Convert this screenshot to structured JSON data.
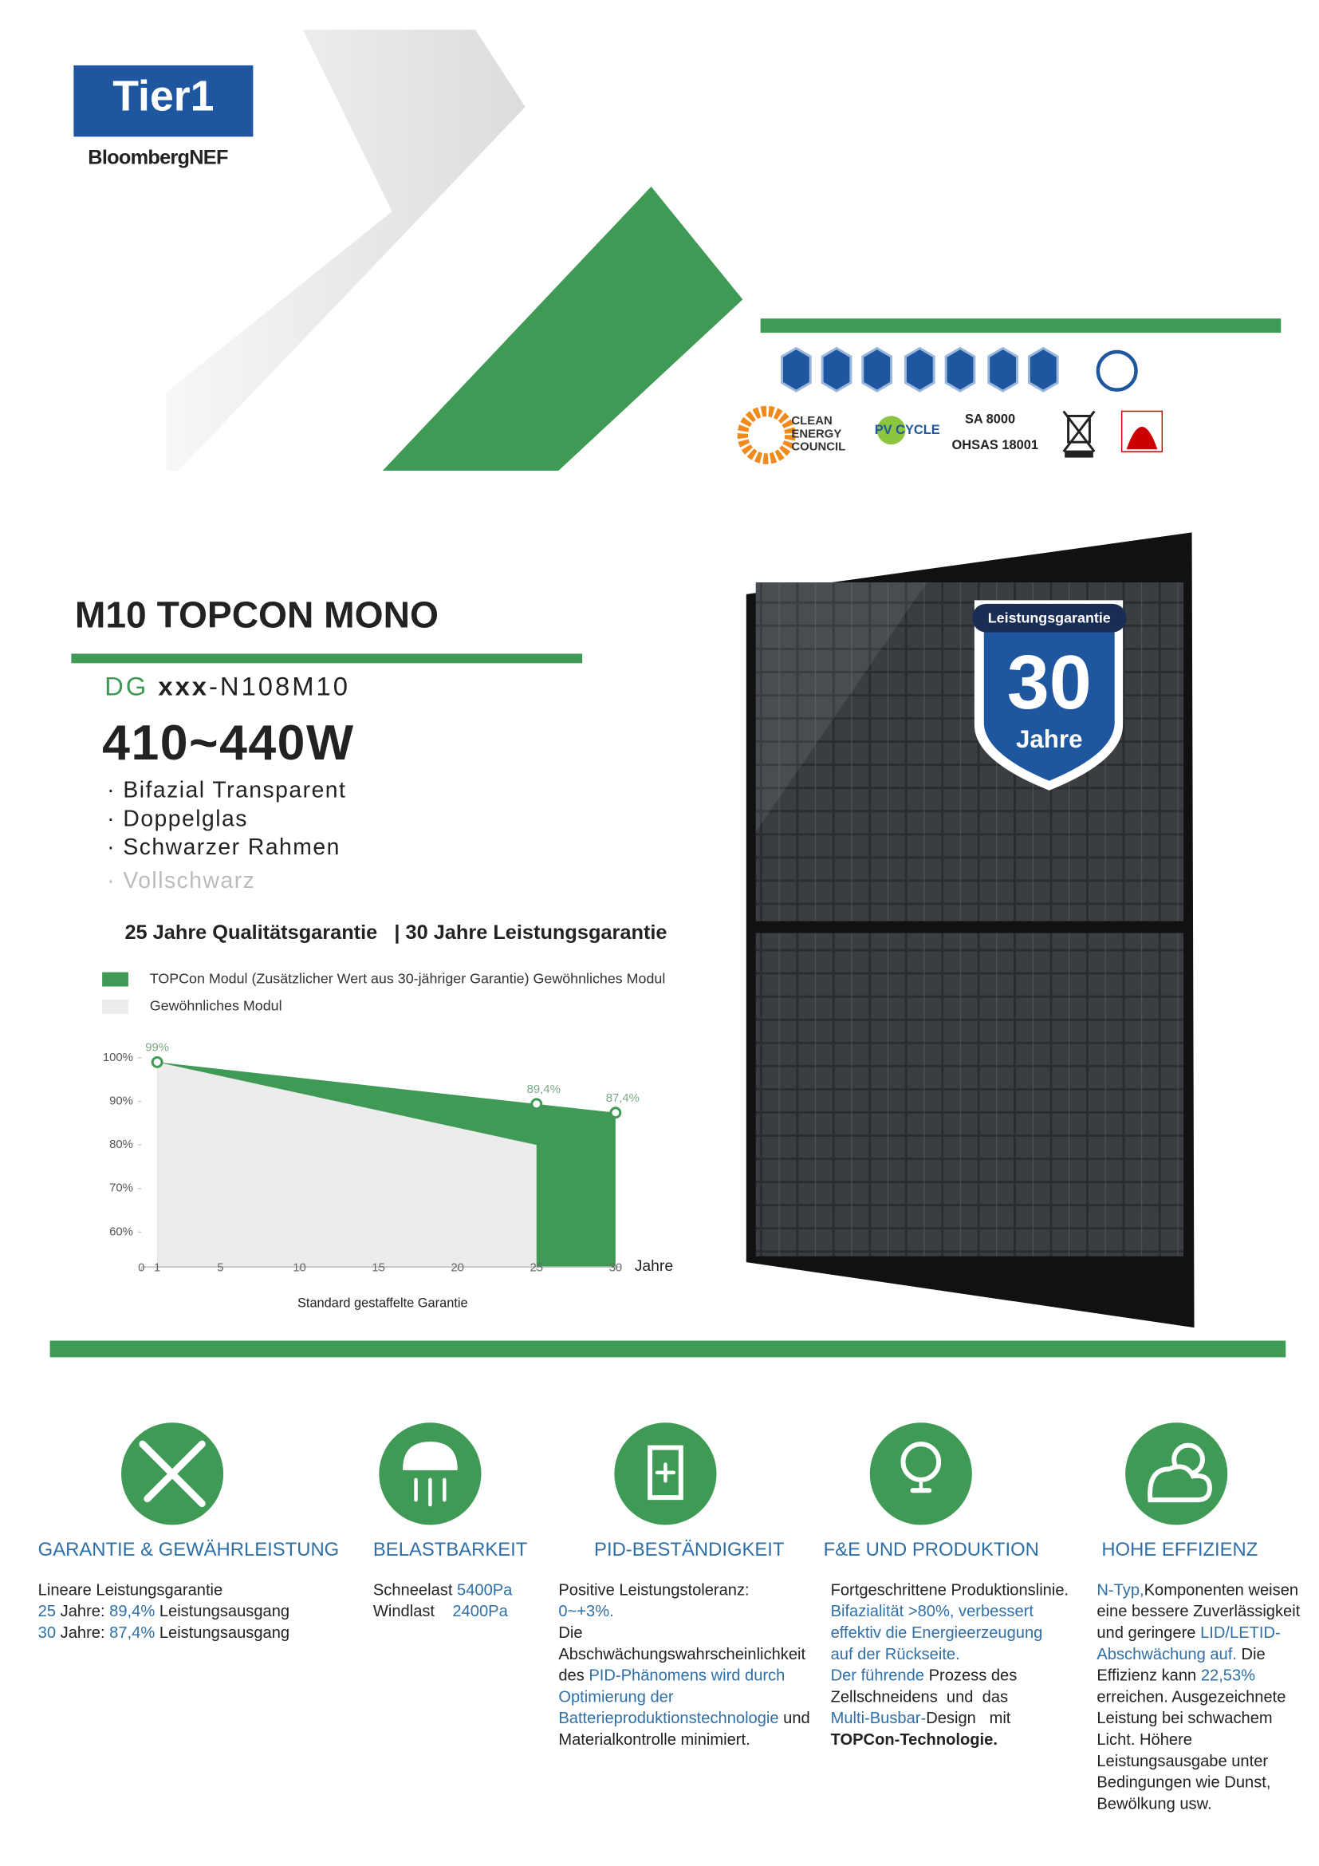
{
  "header": {
    "badge": "Tier1",
    "brand": "BloombergNEF"
  },
  "certifications": {
    "clean_energy": [
      "CLEAN",
      "ENERGY",
      "COUNCIL"
    ],
    "pv_cycle": "PV CYCLE",
    "standards": [
      "SA 8000",
      "OHSAS 18001"
    ]
  },
  "product": {
    "title": "M10 TOPCON MONO",
    "model_prefix": "DG",
    "model_var": "xxx",
    "model_suffix": "-N108M10",
    "power": "410~440W",
    "features": [
      {
        "text": "· Bifazial Transparent",
        "color": "#222222"
      },
      {
        "text": "· Doppelglas",
        "color": "#222222"
      },
      {
        "text": "· Schwarzer Rahmen",
        "color": "#222222"
      },
      {
        "text": "· Vollschwarz",
        "color": "#bbbbbb"
      }
    ],
    "warranty_line": "25 Jahre Qualitätsgarantie   | 30 Jahre Leistungsgarantie"
  },
  "panel_badge": {
    "label": "Leistungsgarantie",
    "number": "30",
    "unit": "Jahre"
  },
  "chart_data": {
    "type": "area",
    "x_label": "Jahre",
    "caption": "Standard gestaffelte Garantie",
    "xlim": [
      0,
      30
    ],
    "xticks": [
      0,
      1,
      5,
      10,
      15,
      20,
      25,
      30
    ],
    "ylim": [
      52,
      100
    ],
    "yticks": [
      {
        "value": 60,
        "label": "60%"
      },
      {
        "value": 70,
        "label": "70%"
      },
      {
        "value": 80,
        "label": "80%"
      },
      {
        "value": 90,
        "label": "90%"
      },
      {
        "value": 100,
        "label": "100%"
      }
    ],
    "series": [
      {
        "name": "TOPCon Modul (Zusätzlicher Wert aus 30-jähriger Garantie) Gewöhnliches Modul",
        "color": "#3f9a55",
        "x": [
          1,
          25,
          30
        ],
        "values": [
          99,
          89.4,
          87.4
        ],
        "value_labels": [
          "99%",
          "89,4%",
          "87,4%"
        ]
      },
      {
        "name": "Gewöhnliches Modul",
        "color": "#ececec",
        "x": [
          1,
          25
        ],
        "values": [
          99,
          80
        ]
      }
    ]
  },
  "features": [
    {
      "heading": "GARANTIE & GEWÄHRLEISTUNG",
      "lines": [
        [
          "Lineare Leistungsgarantie"
        ],
        [
          {
            "text": "25",
            "color": "#2f6fa8"
          },
          " Jahre: ",
          {
            "text": "89,4%",
            "color": "#2f6fa8"
          },
          " Leistungsausgang"
        ],
        [
          {
            "text": "30",
            "color": "#2f6fa8"
          },
          " Jahre: ",
          {
            "text": "87,4%",
            "color": "#2f6fa8"
          },
          " Leistungsausgang"
        ]
      ]
    },
    {
      "heading": "BELASTBARKEIT",
      "lines": [
        [
          "Schneelast ",
          {
            "text": "5400Pa",
            "color": "#2f6fa8"
          }
        ],
        [
          "Windlast    ",
          {
            "text": "2400Pa",
            "color": "#2f6fa8"
          }
        ]
      ]
    },
    {
      "heading": "PID-BESTÄNDIGKEIT",
      "lines": [
        [
          "Positive Leistungstoleranz:"
        ],
        [
          {
            "text": "0~+3%.",
            "color": "#2f6fa8"
          }
        ],
        [
          "Die"
        ],
        [
          "Abschwächungswahrscheinlichkeit"
        ],
        [
          "des ",
          {
            "text": "PID-Phänomens wird durch",
            "color": "#2f6fa8"
          }
        ],
        [
          {
            "text": "Optimierung der",
            "color": "#2f6fa8"
          }
        ],
        [
          {
            "text": "Batterieproduktionstechnologie",
            "color": "#2f6fa8"
          },
          " und"
        ],
        [
          "Materialkontrolle minimiert."
        ]
      ]
    },
    {
      "heading": "F&E UND PRODUKTION",
      "lines": [
        [
          "Fortgeschrittene Produktionslinie."
        ],
        [
          {
            "text": "Bifazialität >80%, verbessert",
            "color": "#2f6fa8"
          }
        ],
        [
          {
            "text": "effektiv die Energieerzeugung",
            "color": "#2f6fa8"
          }
        ],
        [
          {
            "text": "auf der Rückseite.",
            "color": "#2f6fa8"
          }
        ],
        [
          {
            "text": "Der führende",
            "color": "#2f6fa8"
          },
          " Prozess des"
        ],
        [
          "Zellschneidens  und  das"
        ],
        [
          {
            "text": "Multi-Busbar-",
            "color": "#2f6fa8"
          },
          "Design   mit"
        ],
        [
          {
            "text": "TOPCon-Technologie.",
            "bold": true
          }
        ]
      ]
    },
    {
      "heading": "HOHE EFFIZIENZ",
      "lines": [
        [
          {
            "text": "N-Typ,",
            "color": "#2f6fa8"
          },
          "Komponenten weisen"
        ],
        [
          "eine bessere Zuverlässigkeit"
        ],
        [
          "und geringere ",
          {
            "text": "LID/LETID-",
            "color": "#2f6fa8"
          }
        ],
        [
          {
            "text": "Abschwächung auf.",
            "color": "#2f6fa8"
          },
          " Die"
        ],
        [
          "Effizienz kann ",
          {
            "text": "22,53%",
            "color": "#2f6fa8"
          }
        ],
        [
          "erreichen. Ausgezeichnete"
        ],
        [
          "Leistung bei schwachem"
        ],
        [
          "Licht. Höhere"
        ],
        [
          "Leistungsausgabe unter"
        ],
        [
          "Bedingungen wie Dunst,"
        ],
        [
          "Bewölkung usw."
        ]
      ]
    }
  ]
}
